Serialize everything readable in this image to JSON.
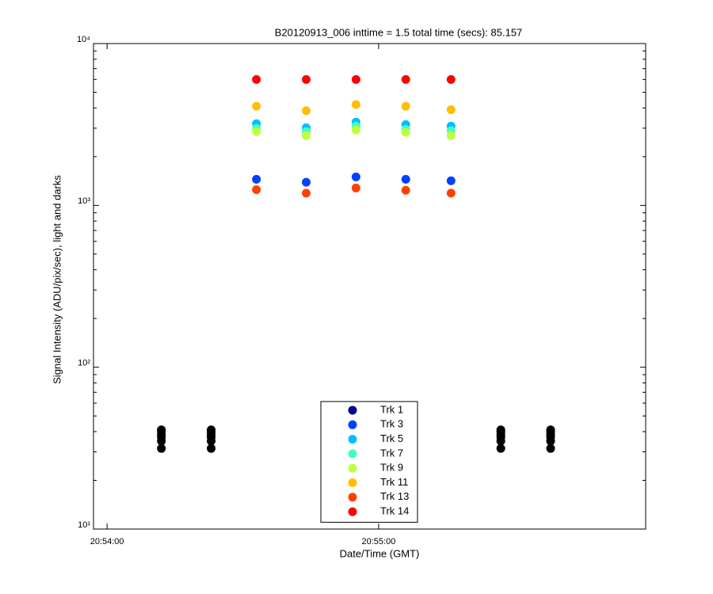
{
  "chart_data": {
    "type": "scatter",
    "title": "B20120913_006 inttime = 1.5 total time (secs): 85.157",
    "x_label": "Date/Time (GMT)",
    "y_label": "Signal Intensity (ADU/pix/sec), light and darks",
    "log_y": true,
    "xlim": [
      "20:53:57",
      "20:55:59"
    ],
    "xticks": [
      "20:54:00",
      "20:55:00"
    ],
    "ylim": [
      10,
      10000
    ],
    "yticks": [
      {
        "value": 10,
        "label": "10¹"
      },
      {
        "value": 100,
        "label": "10²"
      },
      {
        "value": 1000,
        "label": "10³"
      },
      {
        "value": 10000,
        "label": "10⁴"
      }
    ],
    "legend_position": "bottom",
    "series": [
      {
        "color": "#000000",
        "x": [
          "20:54:12",
          "20:54:12",
          "20:54:12",
          "20:54:12",
          "20:54:12",
          "20:54:12",
          "20:54:23",
          "20:54:23",
          "20:54:23",
          "20:54:23",
          "20:54:23",
          "20:54:23",
          "20:55:27",
          "20:55:27",
          "20:55:27",
          "20:55:27",
          "20:55:27",
          "20:55:27",
          "20:55:38",
          "20:55:38",
          "20:55:38",
          "20:55:38",
          "20:55:38",
          "20:55:38"
        ],
        "values": [
          31.5,
          35,
          37,
          38.5,
          40,
          41,
          31.5,
          35,
          37,
          38.5,
          40,
          41,
          31.5,
          35,
          37,
          38.5,
          40,
          41,
          31.5,
          35,
          37,
          38.5,
          40,
          41
        ]
      },
      {
        "name": "Trk 1",
        "color": "#00008f",
        "x": [
          "20:54:33",
          "20:54:44",
          "20:54:55",
          "20:55:06",
          "20:55:16"
        ],
        "values": [
          null,
          null,
          null,
          null,
          null
        ]
      },
      {
        "name": "Trk 3",
        "color": "#0040ff",
        "x": [
          "20:54:33",
          "20:54:44",
          "20:54:55",
          "20:55:06",
          "20:55:16"
        ],
        "values": [
          1450,
          1390,
          1500,
          1450,
          1420
        ]
      },
      {
        "name": "Trk 5",
        "color": "#00bfff",
        "x": [
          "20:54:33",
          "20:54:44",
          "20:54:55",
          "20:55:06",
          "20:55:16"
        ],
        "values": [
          3200,
          3020,
          3270,
          3160,
          3090
        ]
      },
      {
        "name": "Trk 7",
        "color": "#40ffbf",
        "x": [
          "20:54:33",
          "20:54:44",
          "20:54:55",
          "20:55:06",
          "20:55:16"
        ],
        "values": [
          2990,
          2860,
          3090,
          2950,
          2890
        ]
      },
      {
        "name": "Trk 9",
        "color": "#bfff40",
        "x": [
          "20:54:33",
          "20:54:44",
          "20:54:55",
          "20:55:06",
          "20:55:16"
        ],
        "values": [
          2860,
          2700,
          2920,
          2830,
          2700
        ]
      },
      {
        "name": "Trk 11",
        "color": "#ffbf00",
        "x": [
          "20:54:33",
          "20:54:44",
          "20:54:55",
          "20:55:06",
          "20:55:16"
        ],
        "values": [
          4100,
          3850,
          4200,
          4100,
          3900
        ]
      },
      {
        "name": "Trk 13",
        "color": "#ff4000",
        "x": [
          "20:54:33",
          "20:54:44",
          "20:54:55",
          "20:55:06",
          "20:55:16"
        ],
        "values": [
          1250,
          1190,
          1280,
          1240,
          1190
        ]
      },
      {
        "name": "Trk 14",
        "color": "#ff0000",
        "x": [
          "20:54:33",
          "20:54:44",
          "20:54:55",
          "20:55:06",
          "20:55:16"
        ],
        "values": [
          6000,
          6000,
          6000,
          6000,
          6000
        ]
      }
    ]
  }
}
